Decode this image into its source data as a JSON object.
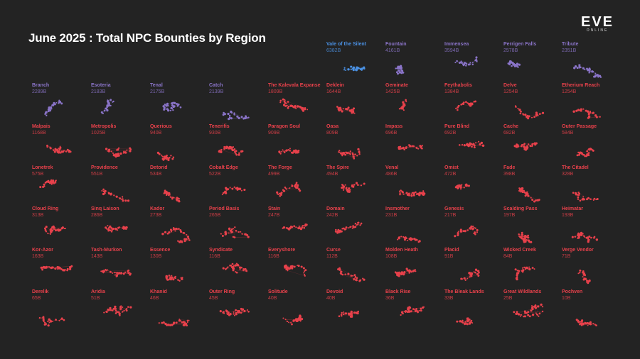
{
  "title": "June 2025 : Total NPC Bounties by Region",
  "logo": {
    "mark": "EVE",
    "sub": "ONLINE"
  },
  "colors": {
    "background": "#232323",
    "top3": "#4a90e2",
    "top10": "#8a74c8",
    "rest": "#e8414b",
    "title": "#ffffff"
  },
  "chart_data": {
    "type": "small-multiples",
    "title": "June 2025 : Total NPC Bounties by Region",
    "unit": "B",
    "regions": [
      {
        "name": "Vale of the Silent",
        "value": "6382B",
        "tier": "top"
      },
      {
        "name": "Fountain",
        "value": "4161B",
        "tier": "high"
      },
      {
        "name": "Immensea",
        "value": "3594B",
        "tier": "high"
      },
      {
        "name": "Perrigen Falls",
        "value": "2578B",
        "tier": "high"
      },
      {
        "name": "Tribute",
        "value": "2351B",
        "tier": "high"
      },
      {
        "name": "Branch",
        "value": "2289B",
        "tier": "high"
      },
      {
        "name": "Esoteria",
        "value": "2183B",
        "tier": "high"
      },
      {
        "name": "Tenal",
        "value": "2175B",
        "tier": "high"
      },
      {
        "name": "Catch",
        "value": "2139B",
        "tier": "high"
      },
      {
        "name": "The Kalevala Expanse",
        "value": "1809B",
        "tier": "rest"
      },
      {
        "name": "Deklein",
        "value": "1644B",
        "tier": "rest"
      },
      {
        "name": "Geminate",
        "value": "1425B",
        "tier": "rest"
      },
      {
        "name": "Feythabolis",
        "value": "1384B",
        "tier": "rest"
      },
      {
        "name": "Delve",
        "value": "1254B",
        "tier": "rest"
      },
      {
        "name": "Etherium Reach",
        "value": "1254B",
        "tier": "rest"
      },
      {
        "name": "Malpais",
        "value": "1168B",
        "tier": "rest"
      },
      {
        "name": "Metropolis",
        "value": "1025B",
        "tier": "rest"
      },
      {
        "name": "Querious",
        "value": "940B",
        "tier": "rest"
      },
      {
        "name": "Tenerifis",
        "value": "930B",
        "tier": "rest"
      },
      {
        "name": "Paragon Soul",
        "value": "909B",
        "tier": "rest"
      },
      {
        "name": "Oasa",
        "value": "809B",
        "tier": "rest"
      },
      {
        "name": "Impass",
        "value": "696B",
        "tier": "rest"
      },
      {
        "name": "Pure Blind",
        "value": "692B",
        "tier": "rest"
      },
      {
        "name": "Cache",
        "value": "682B",
        "tier": "rest"
      },
      {
        "name": "Outer Passage",
        "value": "584B",
        "tier": "rest"
      },
      {
        "name": "Lonetrek",
        "value": "575B",
        "tier": "rest"
      },
      {
        "name": "Providence",
        "value": "551B",
        "tier": "rest"
      },
      {
        "name": "Detorid",
        "value": "534B",
        "tier": "rest"
      },
      {
        "name": "Cobalt Edge",
        "value": "522B",
        "tier": "rest"
      },
      {
        "name": "The Forge",
        "value": "499B",
        "tier": "rest"
      },
      {
        "name": "The Spire",
        "value": "494B",
        "tier": "rest"
      },
      {
        "name": "Venal",
        "value": "486B",
        "tier": "rest"
      },
      {
        "name": "Omist",
        "value": "472B",
        "tier": "rest"
      },
      {
        "name": "Fade",
        "value": "398B",
        "tier": "rest"
      },
      {
        "name": "The Citadel",
        "value": "328B",
        "tier": "rest"
      },
      {
        "name": "Cloud Ring",
        "value": "313B",
        "tier": "rest"
      },
      {
        "name": "Sinq Laison",
        "value": "286B",
        "tier": "rest"
      },
      {
        "name": "Kador",
        "value": "273B",
        "tier": "rest"
      },
      {
        "name": "Period Basis",
        "value": "265B",
        "tier": "rest"
      },
      {
        "name": "Stain",
        "value": "247B",
        "tier": "rest"
      },
      {
        "name": "Domain",
        "value": "242B",
        "tier": "rest"
      },
      {
        "name": "Insmother",
        "value": "231B",
        "tier": "rest"
      },
      {
        "name": "Genesis",
        "value": "217B",
        "tier": "rest"
      },
      {
        "name": "Scalding Pass",
        "value": "197B",
        "tier": "rest"
      },
      {
        "name": "Heimatar",
        "value": "193B",
        "tier": "rest"
      },
      {
        "name": "Kor-Azor",
        "value": "163B",
        "tier": "rest"
      },
      {
        "name": "Tash-Murkon",
        "value": "143B",
        "tier": "rest"
      },
      {
        "name": "Essence",
        "value": "130B",
        "tier": "rest"
      },
      {
        "name": "Syndicate",
        "value": "116B",
        "tier": "rest"
      },
      {
        "name": "Everyshore",
        "value": "116B",
        "tier": "rest"
      },
      {
        "name": "Curse",
        "value": "112B",
        "tier": "rest"
      },
      {
        "name": "Molden Heath",
        "value": "108B",
        "tier": "rest"
      },
      {
        "name": "Placid",
        "value": "91B",
        "tier": "rest"
      },
      {
        "name": "Wicked Creek",
        "value": "84B",
        "tier": "rest"
      },
      {
        "name": "Verge Vendor",
        "value": "71B",
        "tier": "rest"
      },
      {
        "name": "Derelik",
        "value": "65B",
        "tier": "rest"
      },
      {
        "name": "Aridia",
        "value": "51B",
        "tier": "rest"
      },
      {
        "name": "Khanid",
        "value": "46B",
        "tier": "rest"
      },
      {
        "name": "Outer Ring",
        "value": "45B",
        "tier": "rest"
      },
      {
        "name": "Solitude",
        "value": "40B",
        "tier": "rest"
      },
      {
        "name": "Devoid",
        "value": "40B",
        "tier": "rest"
      },
      {
        "name": "Black Rise",
        "value": "36B",
        "tier": "rest"
      },
      {
        "name": "The Bleak Lands",
        "value": "33B",
        "tier": "rest"
      },
      {
        "name": "Great Wildlands",
        "value": "25B",
        "tier": "rest"
      },
      {
        "name": "Pochven",
        "value": "10B",
        "tier": "rest"
      }
    ]
  }
}
